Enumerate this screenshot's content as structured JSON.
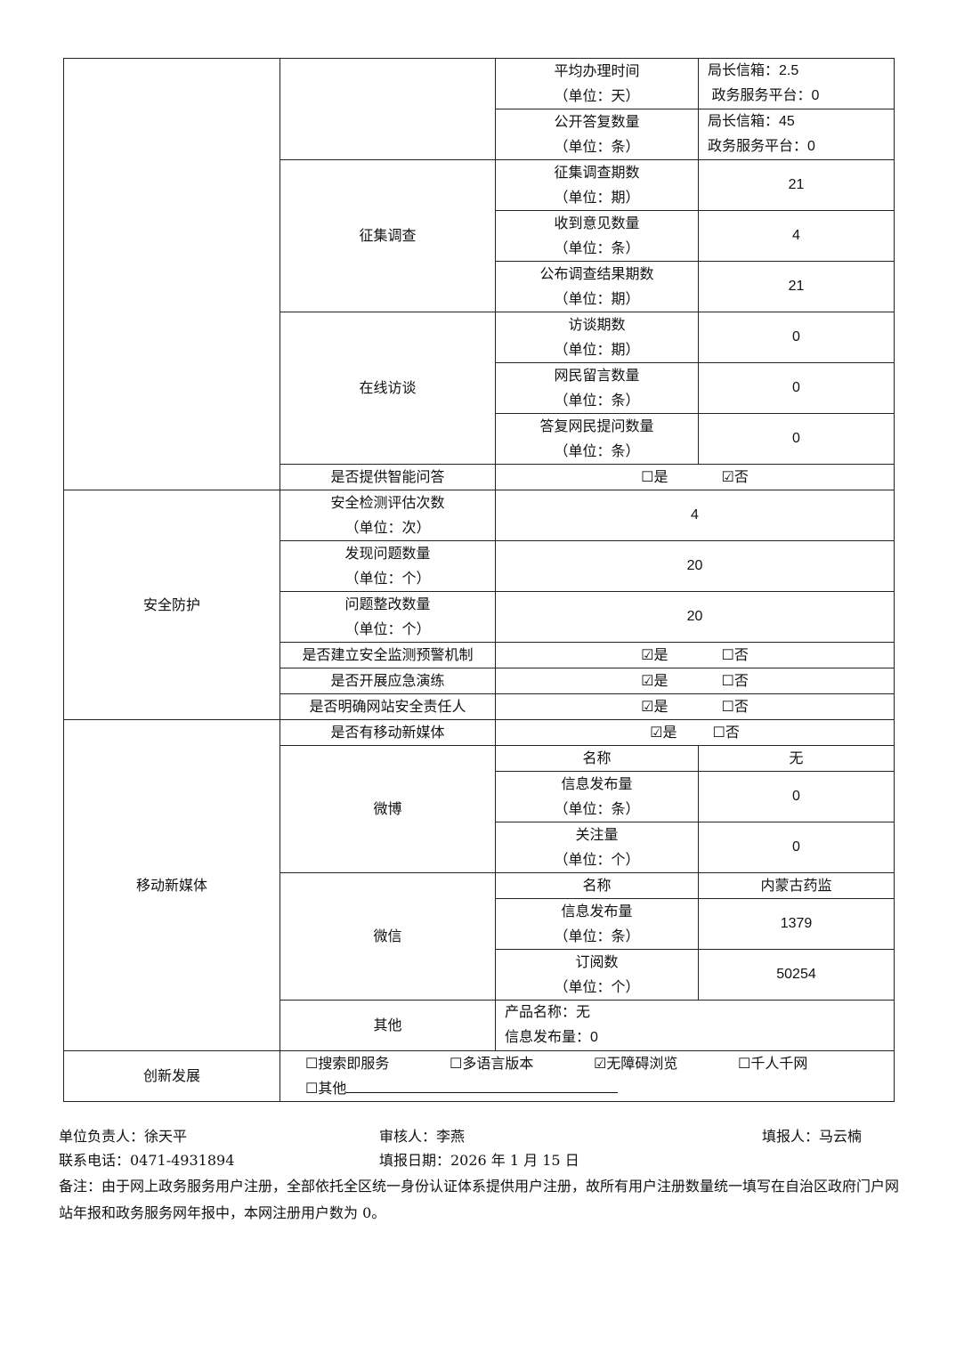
{
  "rows": {
    "avg_time": {
      "label": "平均办理时间",
      "unit": "（单位：天）",
      "v1": "局长信箱：2.5",
      "v2": "政务服务平台：0"
    },
    "public_reply": {
      "label": "公开答复数量",
      "unit": "（单位：条）",
      "v1": "局长信箱：45",
      "v2": "政务服务平台：0"
    },
    "survey": {
      "group": "征集调查",
      "items": [
        {
          "label": "征集调查期数",
          "unit": "（单位：期）",
          "value": "21"
        },
        {
          "label": "收到意见数量",
          "unit": "（单位：条）",
          "value": "4"
        },
        {
          "label": "公布调查结果期数",
          "unit": "（单位：期）",
          "value": "21"
        }
      ]
    },
    "interview": {
      "group": "在线访谈",
      "items": [
        {
          "label": "访谈期数",
          "unit": "（单位：期）",
          "value": "0"
        },
        {
          "label": "网民留言数量",
          "unit": "（单位：条）",
          "value": "0"
        },
        {
          "label": "答复网民提问数量",
          "unit": "（单位：条）",
          "value": "0"
        }
      ]
    },
    "smart_qa": {
      "label": "是否提供智能问答",
      "yes": "☐是",
      "no": "☑否"
    },
    "security": {
      "group": "安全防护",
      "items": [
        {
          "label": "安全检测评估次数",
          "unit": "（单位：次）",
          "value": "4"
        },
        {
          "label": "发现问题数量",
          "unit": "（单位：个）",
          "value": "20"
        },
        {
          "label": "问题整改数量",
          "unit": "（单位：个）",
          "value": "20"
        }
      ],
      "checks": [
        {
          "label": "是否建立安全监测预警机制",
          "yes": "☑是",
          "no": "☐否"
        },
        {
          "label": "是否开展应急演练",
          "yes": "☑是",
          "no": "☐否"
        },
        {
          "label": "是否明确网站安全责任人",
          "yes": "☑是",
          "no": "☐否"
        }
      ]
    },
    "media": {
      "group": "移动新媒体",
      "has": {
        "label": "是否有移动新媒体",
        "yes": "☑是",
        "no": "☐否"
      },
      "weibo": {
        "group": "微博",
        "name_label": "名称",
        "name": "无",
        "items": [
          {
            "label": "信息发布量",
            "unit": "（单位：条）",
            "value": "0"
          },
          {
            "label": "关注量",
            "unit": "（单位：个）",
            "value": "0"
          }
        ]
      },
      "wechat": {
        "group": "微信",
        "name_label": "名称",
        "name": "内蒙古药监",
        "items": [
          {
            "label": "信息发布量",
            "unit": "（单位：条）",
            "value": "1379"
          },
          {
            "label": "订阅数",
            "unit": "（单位：个）",
            "value": "50254"
          }
        ]
      },
      "other": {
        "group": "其他",
        "line1": "产品名称：无",
        "line2": "信息发布量：0"
      }
    },
    "innovation": {
      "group": "创新发展",
      "options": [
        "☐搜索即服务",
        "☐多语言版本",
        "☑无障碍浏览",
        "☐千人千网"
      ],
      "other": "☐其他"
    }
  },
  "footer": {
    "head": "单位负责人：徐天平",
    "reviewer": "审核人：李燕",
    "filler": "填报人：马云楠",
    "phone": "联系电话：0471-4931894",
    "date": "填报日期：2026 年 1 月 15 日",
    "note": "备注：由于网上政务服务用户注册，全部依托全区统一身份认证体系提供用户注册，故所有用户注册数量统一填写在自治区政府门户网站年报和政务服务网年报中，本网注册用户数为 0。"
  }
}
